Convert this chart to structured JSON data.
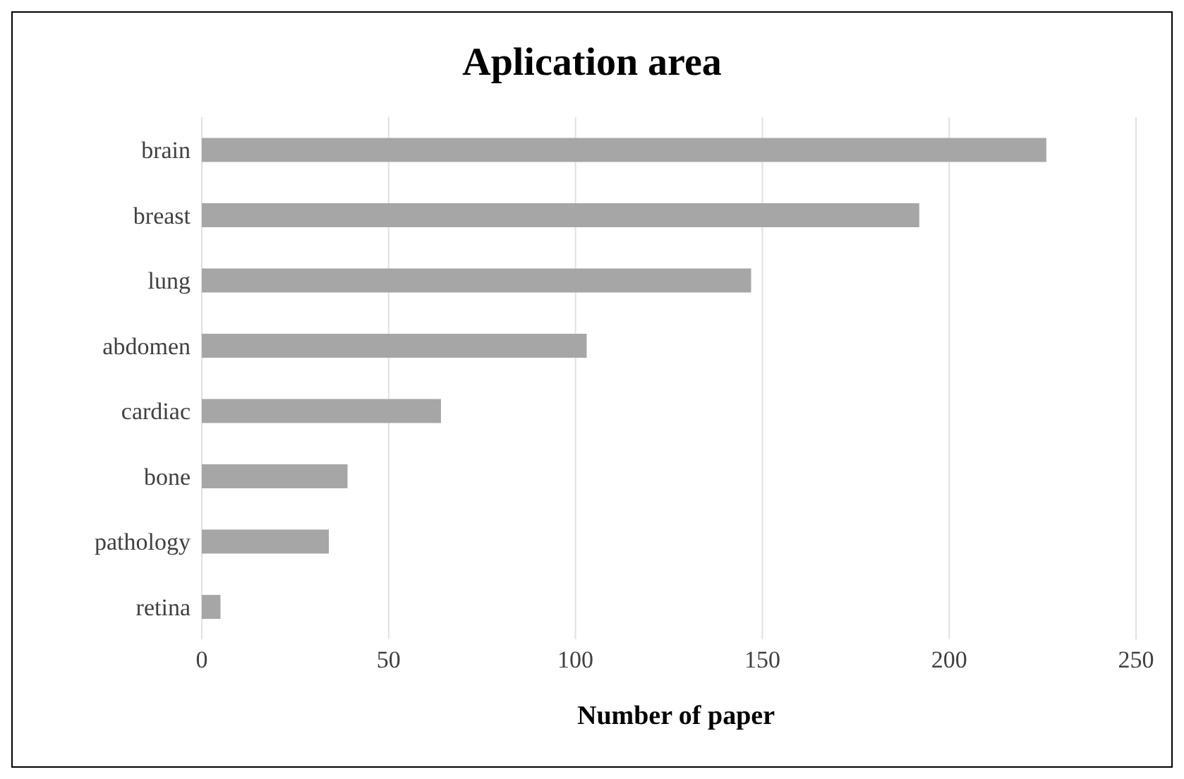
{
  "chart_data": {
    "type": "bar",
    "orientation": "horizontal",
    "title": "Aplication area",
    "xlabel": "Number of paper",
    "categories": [
      "brain",
      "breast",
      "lung",
      "abdomen",
      "cardiac",
      "bone",
      "pathology",
      "retina"
    ],
    "values": [
      226,
      192,
      147,
      103,
      64,
      39,
      34,
      5
    ],
    "color": "#a6a6a6",
    "xlim": [
      0,
      250
    ],
    "xticks": [
      0,
      50,
      100,
      150,
      200,
      250
    ],
    "grid": "x"
  }
}
